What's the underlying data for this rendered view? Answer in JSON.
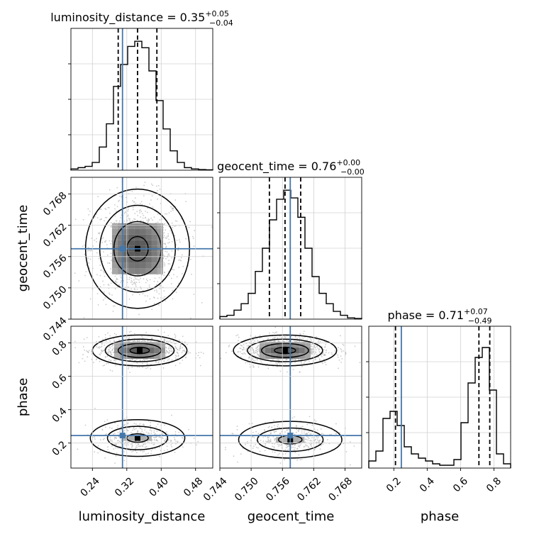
{
  "chart_data": {
    "type": "corner",
    "parameters": [
      {
        "name": "luminosity_distance",
        "label": "luminosity_distance",
        "range": [
          0.19,
          0.52
        ],
        "truth": 0.31,
        "ticks": [
          0.24,
          0.32,
          0.4,
          0.48
        ],
        "tick_labels": [
          "0.24",
          "0.32",
          "0.40",
          "0.48"
        ],
        "quantiles": [
          0.3,
          0.345,
          0.39
        ],
        "title": {
          "text": "luminosity_distance = 0.35",
          "plus": "+0.05",
          "minus": "−0.04"
        }
      },
      {
        "name": "geocent_time",
        "label": "geocent_time",
        "range": [
          0.744,
          0.7712
        ],
        "truth": 0.7575,
        "ticks": [
          0.744,
          0.75,
          0.756,
          0.762,
          0.768
        ],
        "tick_labels": [
          "0.744",
          "0.750",
          "0.756",
          "0.762",
          "0.768"
        ],
        "quantiles": [
          0.7535,
          0.7565,
          0.7595
        ],
        "title": {
          "text": "geocent_time = 0.76",
          "plus": "+0.00",
          "minus": "−0.00"
        }
      },
      {
        "name": "phase",
        "label": "phase",
        "range": [
          0.05,
          0.9
        ],
        "truth": 0.245,
        "ticks": [
          0.2,
          0.4,
          0.6,
          0.8
        ],
        "tick_labels": [
          "0.2",
          "0.4",
          "0.6",
          "0.8"
        ],
        "quantiles": [
          0.21,
          0.71,
          0.775
        ],
        "title": {
          "text": "phase = 0.71",
          "plus": "+0.07",
          "minus": "−0.49"
        }
      }
    ],
    "histograms": [
      {
        "parameter": "luminosity_distance",
        "edges_start": 0.19,
        "bin_width": 0.0165,
        "counts": [
          1,
          2,
          3,
          6,
          18,
          36,
          65,
          82,
          96,
          100,
          95,
          77,
          54,
          32,
          15,
          6,
          2,
          1,
          0.5,
          0.3
        ],
        "max": 110
      },
      {
        "parameter": "geocent_time",
        "edges_start": 0.744,
        "bin_width": 0.00136,
        "counts": [
          2,
          3,
          7,
          12,
          20,
          37,
          55,
          77,
          93,
          100,
          94,
          79,
          55,
          33,
          20,
          12,
          6,
          3,
          1,
          0.5
        ],
        "max": 110
      },
      {
        "parameter": "phase",
        "edges_start": 0.05,
        "bin_width": 0.0425,
        "counts": [
          5,
          12,
          35,
          40,
          30,
          15,
          10,
          7,
          5,
          3,
          2,
          2,
          6,
          32,
          60,
          78,
          85,
          55,
          10,
          3
        ],
        "max": 100
      }
    ],
    "pairs": [
      {
        "x": "luminosity_distance",
        "y": "geocent_time",
        "modes": [
          {
            "cx": 0.345,
            "cy": 0.7575,
            "sx": 0.055,
            "sy": 0.0052,
            "w": 1
          }
        ]
      },
      {
        "x": "luminosity_distance",
        "y": "phase",
        "modes": [
          {
            "cx": 0.35,
            "cy": 0.755,
            "sx": 0.05,
            "sy": 0.042,
            "w": 1
          },
          {
            "cx": 0.345,
            "cy": 0.23,
            "sx": 0.05,
            "sy": 0.05,
            "w": 0.42
          }
        ]
      },
      {
        "x": "geocent_time",
        "y": "phase",
        "modes": [
          {
            "cx": 0.7565,
            "cy": 0.755,
            "sx": 0.0045,
            "sy": 0.042,
            "w": 1
          },
          {
            "cx": 0.7575,
            "cy": 0.22,
            "sx": 0.0045,
            "sy": 0.05,
            "w": 0.42
          }
        ]
      }
    ],
    "colors": {
      "truth": "#4477aa",
      "hist": "#000000",
      "grid": "#d0d0d0",
      "points": "#bdbdbd"
    }
  }
}
